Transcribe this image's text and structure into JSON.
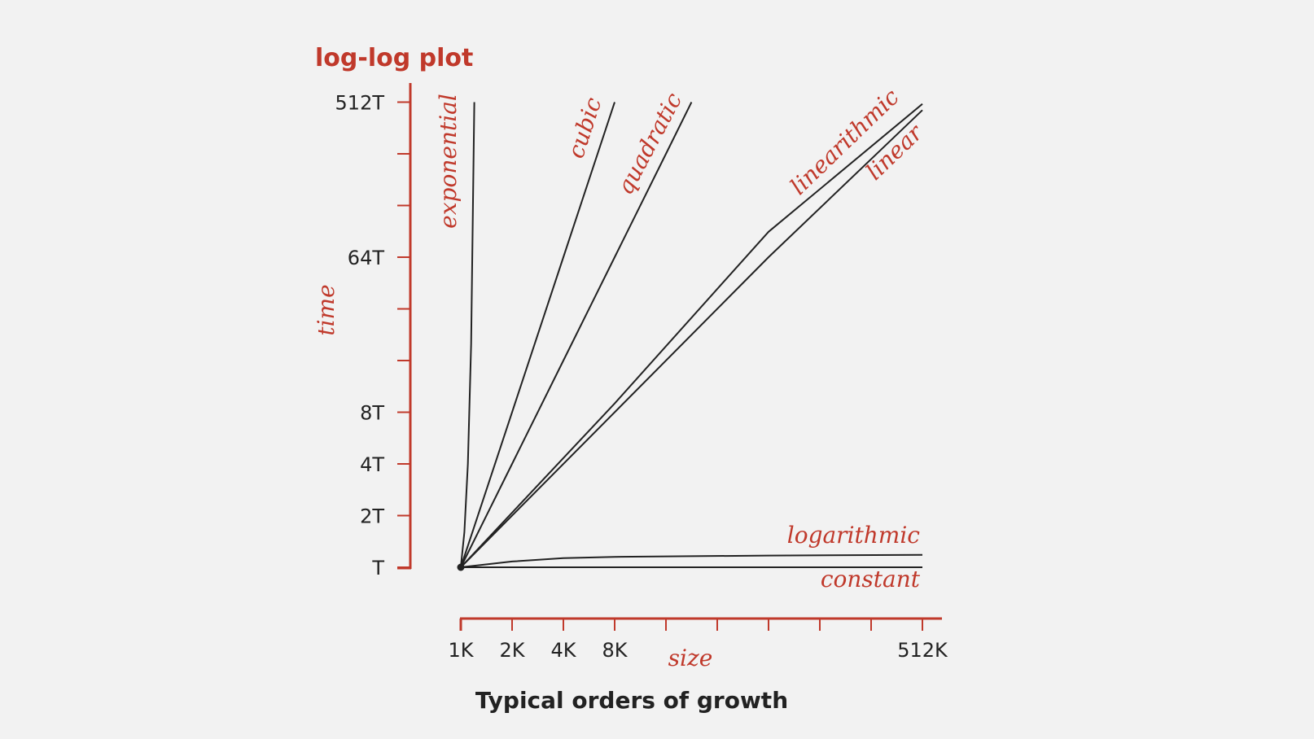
{
  "colors": {
    "accent": "#c0392b",
    "curve": "#222222",
    "background": "#f2f2f2"
  },
  "chart_data": {
    "type": "line",
    "title": "log-log plot",
    "caption": "Typical orders of growth",
    "xlabel": "size",
    "ylabel": "time",
    "scale": "log-log",
    "x_tick_labels": [
      "1K",
      "2K",
      "4K",
      "8K",
      "512K"
    ],
    "y_tick_labels": [
      "T",
      "2T",
      "4T",
      "8T",
      "64T",
      "512T"
    ],
    "xlim": [
      1,
      512
    ],
    "ylim": [
      1,
      512
    ],
    "x_unit": "K",
    "y_unit": "T",
    "series": [
      {
        "name": "exponential",
        "x": [
          1,
          1.05,
          1.1,
          1.15,
          1.2
        ],
        "y": [
          1,
          1.6,
          4,
          20,
          512
        ]
      },
      {
        "name": "cubic",
        "x": [
          1,
          2,
          4,
          8
        ],
        "y": [
          1,
          8,
          64,
          512
        ]
      },
      {
        "name": "quadratic",
        "x": [
          1,
          2,
          4,
          8,
          16,
          22.6
        ],
        "y": [
          1,
          4,
          16,
          64,
          256,
          512
        ]
      },
      {
        "name": "linearithmic",
        "x": [
          1,
          8,
          64,
          512
        ],
        "y": [
          1,
          9,
          90,
          500
        ]
      },
      {
        "name": "linear",
        "x": [
          1,
          8,
          64,
          512
        ],
        "y": [
          1,
          8,
          64,
          460
        ]
      },
      {
        "name": "logarithmic",
        "x": [
          1,
          2,
          4,
          8,
          64,
          512
        ],
        "y": [
          1,
          1.08,
          1.13,
          1.15,
          1.17,
          1.18
        ]
      },
      {
        "name": "constant",
        "x": [
          1,
          512
        ],
        "y": [
          1,
          1
        ]
      }
    ]
  }
}
